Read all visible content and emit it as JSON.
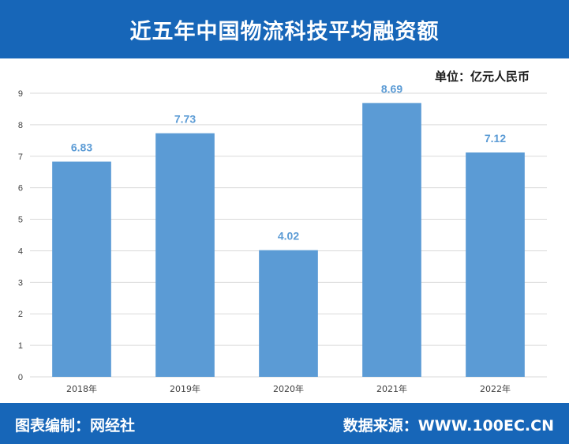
{
  "header": {
    "title": "近五年中国物流科技平均融资额"
  },
  "unit_label": "单位：亿元人民币",
  "footer": {
    "credit": "图表编制：网经社",
    "source": "数据来源：WWW.100EC.CN"
  },
  "colors": {
    "header_bg": "#1766b8",
    "bar": "#5b9bd5",
    "data_label": "#5b9bd5",
    "grid": "#d9d9d9"
  },
  "chart_data": {
    "type": "bar",
    "categories": [
      "2018年",
      "2019年",
      "2020年",
      "2021年",
      "2022年"
    ],
    "values": [
      6.83,
      7.73,
      4.02,
      8.69,
      7.12
    ],
    "value_labels": [
      "6.83",
      "7.73",
      "4.02",
      "8.69",
      "7.12"
    ],
    "yticks": [
      "0",
      "1",
      "2",
      "3",
      "4",
      "5",
      "6",
      "7",
      "8",
      "9"
    ],
    "ylim": [
      0,
      9
    ],
    "grid": true,
    "legend": "none"
  }
}
